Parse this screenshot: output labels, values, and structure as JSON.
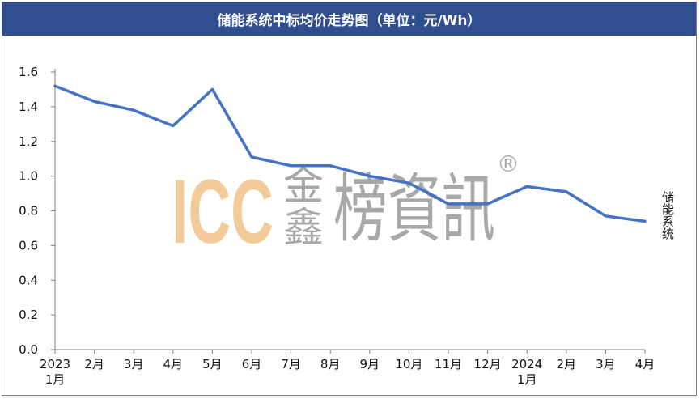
{
  "title": "储能系统中标均价走势图（单位：元/Wh）",
  "watermark": {
    "latin": "ICC",
    "cjk_small_top": "金",
    "cjk_small_bottom": "鑫",
    "cjk_big": "榜資訊",
    "registered": "®"
  },
  "colors": {
    "title_bg": "#2e4e8f",
    "line": "#4472c4",
    "watermark": "#f2c38a"
  },
  "chart_data": {
    "type": "line",
    "title": "储能系统中标均价走势图（单位：元/Wh）",
    "xlabel": "",
    "ylabel": "",
    "ylim": [
      0,
      1.6
    ],
    "yticks": [
      "0.0",
      "0.2",
      "0.4",
      "0.6",
      "0.8",
      "1.0",
      "1.2",
      "1.4",
      "1.6"
    ],
    "categories": [
      [
        "2023",
        "1月"
      ],
      [
        "2月"
      ],
      [
        "3月"
      ],
      [
        "4月"
      ],
      [
        "5月"
      ],
      [
        "6月"
      ],
      [
        "7月"
      ],
      [
        "8月"
      ],
      [
        "9月"
      ],
      [
        "10月"
      ],
      [
        "11月"
      ],
      [
        "12月"
      ],
      [
        "2024",
        "1月"
      ],
      [
        "2月"
      ],
      [
        "3月"
      ],
      [
        "4月"
      ]
    ],
    "grid": false,
    "legend": "right, inline label",
    "series": [
      {
        "name": "储能系统",
        "values": [
          1.52,
          1.43,
          1.38,
          1.29,
          1.5,
          1.11,
          1.06,
          1.06,
          1.0,
          0.96,
          0.84,
          0.84,
          0.94,
          0.91,
          0.77,
          0.74
        ]
      }
    ]
  }
}
